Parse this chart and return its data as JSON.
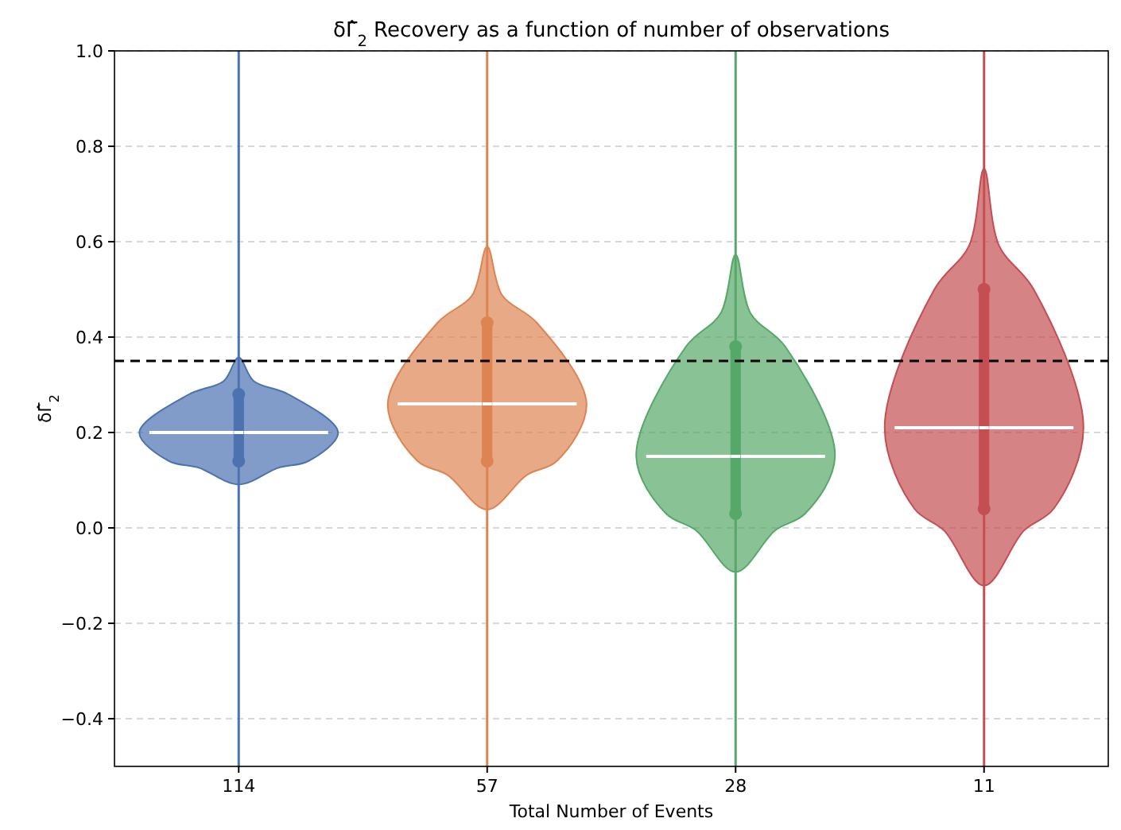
{
  "chart_data": {
    "type": "box",
    "title": "δΓ̂$_{2}$ Recovery as a function of number of observations",
    "xlabel": "Total Number of Events",
    "ylabel": "δΓ̂$_{2}$",
    "categories": [
      "114",
      "57",
      "28",
      "11"
    ],
    "colors": [
      "#4c72b0",
      "#dd8452",
      "#55a868",
      "#c44e52"
    ],
    "boxes": [
      {
        "low": -0.5,
        "q1": 0.14,
        "median": 0.2,
        "q3": 0.28,
        "high": 1.0
      },
      {
        "low": -0.5,
        "q1": 0.14,
        "median": 0.26,
        "q3": 0.43,
        "high": 1.0
      },
      {
        "low": -0.5,
        "q1": 0.03,
        "median": 0.15,
        "q3": 0.38,
        "high": 1.0
      },
      {
        "low": -0.5,
        "q1": 0.04,
        "median": 0.21,
        "q3": 0.5,
        "high": 1.0
      }
    ],
    "ylim": [
      -0.5,
      1.0
    ],
    "yticks": [
      {
        "value": -0.4,
        "label": "−0.4"
      },
      {
        "value": -0.2,
        "label": "−0.2"
      },
      {
        "value": 0,
        "label": "0.0"
      },
      0.2,
      0.4,
      0.6,
      0.8,
      {
        "value": 1,
        "label": "1.0"
      }
    ],
    "grid": "y",
    "ref_lines": [
      {
        "axis": "y",
        "value": 0.35,
        "color": "#000000",
        "line_style": "dashed"
      }
    ]
  }
}
